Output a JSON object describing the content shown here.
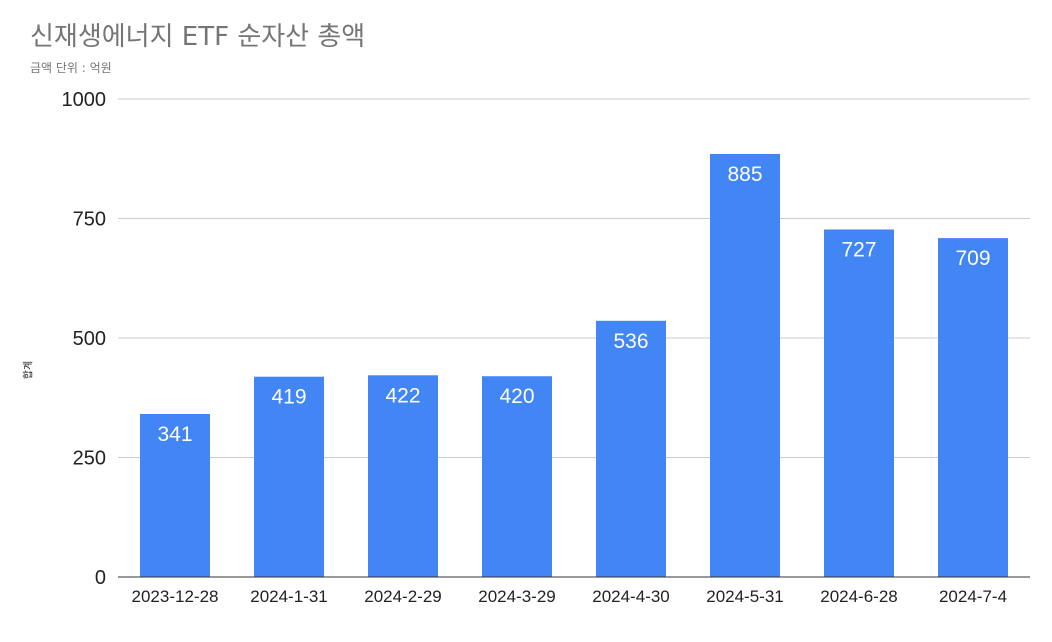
{
  "chart_data": {
    "type": "bar",
    "title": "신재생에너지 ETF 순자산 총액",
    "subtitle": "금액 단위 : 억원",
    "ylabel": "합계",
    "xlabel": "",
    "categories": [
      "2023-12-28",
      "2024-1-31",
      "2024-2-29",
      "2024-3-29",
      "2024-4-30",
      "2024-5-31",
      "2024-6-28",
      "2024-7-4"
    ],
    "values": [
      341,
      419,
      422,
      420,
      536,
      885,
      727,
      709
    ],
    "data_labels": [
      "341",
      "419",
      "422",
      "420",
      "536",
      "885",
      "727",
      "709"
    ],
    "ylim": [
      0,
      1000
    ],
    "yticks": [
      0,
      250,
      500,
      750,
      1000
    ],
    "ytick_labels": [
      "0",
      "250",
      "500",
      "750",
      "1000"
    ],
    "grid": true,
    "legend": "none",
    "colors": {
      "bar": "#4285F4",
      "grid": "#cccccc",
      "axis": "#333333",
      "title": "#757575"
    }
  }
}
